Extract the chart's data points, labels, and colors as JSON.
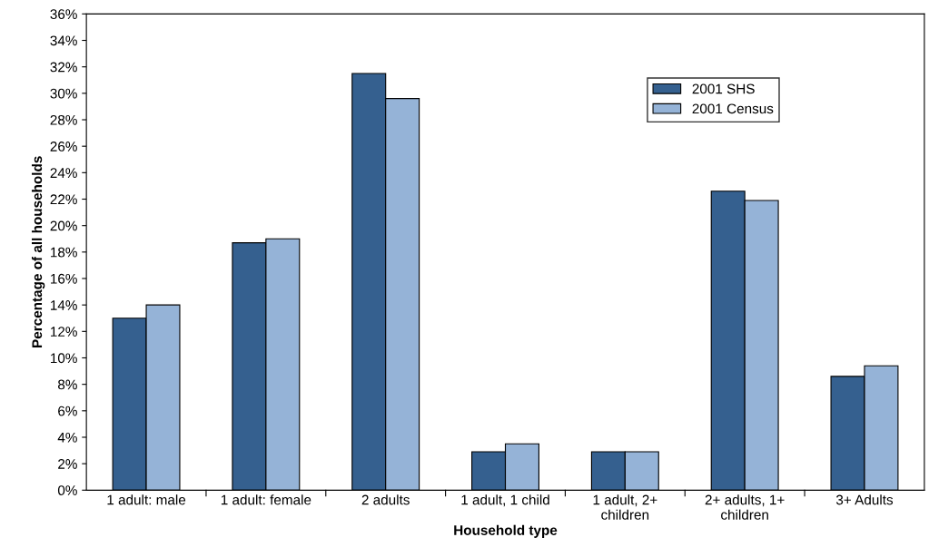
{
  "chart_data": {
    "type": "bar",
    "xlabel": "Household type",
    "ylabel": "Percentage of all households",
    "categories": [
      "1 adult: male",
      "1 adult: female",
      "2 adults",
      "1 adult, 1 child",
      "1 adult, 2+\nchildren",
      "2+ adults, 1+\nchildren",
      "3+ Adults"
    ],
    "series": [
      {
        "name": "2001 SHS",
        "color": "#35608f",
        "values": [
          13.0,
          18.7,
          31.5,
          2.9,
          2.9,
          22.6,
          8.6
        ]
      },
      {
        "name": "2001 Census",
        "color": "#95b3d7",
        "values": [
          14.0,
          19.0,
          29.6,
          3.5,
          2.9,
          21.9,
          9.4
        ]
      }
    ],
    "ylim": [
      0,
      36
    ],
    "yticks": [
      {
        "value": 0,
        "label": "0%"
      },
      {
        "value": 2,
        "label": "2%"
      },
      {
        "value": 4,
        "label": "4%"
      },
      {
        "value": 6,
        "label": "6%"
      },
      {
        "value": 8,
        "label": "8%"
      },
      {
        "value": 10,
        "label": "10%"
      },
      {
        "value": 12,
        "label": "12%"
      },
      {
        "value": 14,
        "label": "14%"
      },
      {
        "value": 16,
        "label": "16%"
      },
      {
        "value": 18,
        "label": "18%"
      },
      {
        "value": 20,
        "label": "20%"
      },
      {
        "value": 22,
        "label": "22%"
      },
      {
        "value": 24,
        "label": "24%"
      },
      {
        "value": 26,
        "label": "26%"
      },
      {
        "value": 28,
        "label": "28%"
      },
      {
        "value": 30,
        "label": "30%"
      },
      {
        "value": 32,
        "label": "32%"
      },
      {
        "value": 34,
        "label": "34%"
      },
      {
        "value": 36,
        "label": "36%"
      }
    ],
    "legend": "top right"
  }
}
